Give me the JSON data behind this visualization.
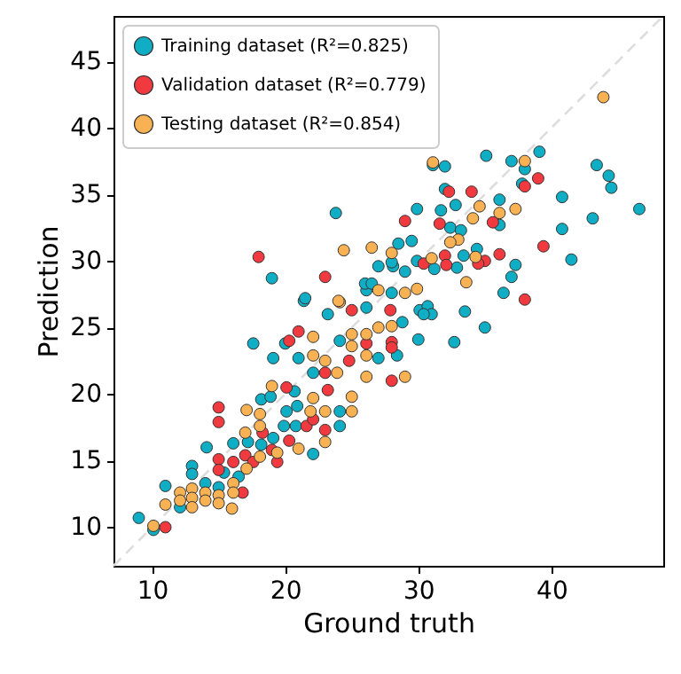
{
  "chart_data": {
    "type": "scatter",
    "xlabel": "Ground truth",
    "ylabel": "Prediction",
    "xlim": [
      7.1,
      48.4
    ],
    "ylim": [
      7.1,
      48.4
    ],
    "xticks": [
      10,
      20,
      30,
      40
    ],
    "yticks": [
      10,
      15,
      20,
      25,
      30,
      35,
      40,
      45
    ],
    "legend": "top left",
    "marker": "circle",
    "series": [
      {
        "type": "line",
        "color": "#dddddd",
        "line_style": "dashed",
        "marker": "none",
        "x": [
          7.1,
          48.4
        ],
        "values": [
          7.1,
          48.4
        ]
      },
      {
        "name": "Training dataset (R²=0.825)",
        "color": "#10aec4",
        "x": [
          9.0,
          10.1,
          11.0,
          12.1,
          13.0,
          13.0,
          14.1,
          14.0,
          15.0,
          15.4,
          16.1,
          16.5,
          17.2,
          18.2,
          18.2,
          18.9,
          19.1,
          19.9,
          20.1,
          20.8,
          22.1,
          24.1,
          20.9,
          20.7,
          24.1,
          17.6,
          19.1,
          20.0,
          21.4,
          21.0,
          22.1,
          23.2,
          24.1,
          26.1,
          27.0,
          26.1,
          23.8,
          19.0,
          21.5,
          26.0,
          27.0,
          26.5,
          28.1,
          28.5,
          28.0,
          28.0,
          29.0,
          29.9,
          29.5,
          29.9,
          31.7,
          32.0,
          32.8,
          32.4,
          33.2,
          31.2,
          32.9,
          33.4,
          34.4,
          36.1,
          36.1,
          37.3,
          37.0,
          36.4,
          35.1,
          37.0,
          39.1,
          37.8,
          38.0,
          43.4,
          44.3,
          44.5,
          46.6,
          43.1,
          40.8,
          40.8,
          41.5,
          31.1,
          32.0,
          33.5,
          30.1,
          30.7,
          31.0,
          30.4,
          35.0,
          32.7,
          30.0,
          28.8,
          28.4
        ],
        "values": [
          10.7,
          9.8,
          13.1,
          11.5,
          14.6,
          14.0,
          16.0,
          13.3,
          13.0,
          14.1,
          16.3,
          13.8,
          16.4,
          16.2,
          19.6,
          19.8,
          16.7,
          17.6,
          18.7,
          17.6,
          15.5,
          17.6,
          19.1,
          20.2,
          18.7,
          23.8,
          22.7,
          23.8,
          27.0,
          22.7,
          21.6,
          26.0,
          24.0,
          26.5,
          22.7,
          27.8,
          33.6,
          28.7,
          27.2,
          28.3,
          29.6,
          28.3,
          29.6,
          31.3,
          27.6,
          29.9,
          29.2,
          30.0,
          31.5,
          33.9,
          33.8,
          35.4,
          34.2,
          32.5,
          32.3,
          29.4,
          29.5,
          30.4,
          30.9,
          34.6,
          32.7,
          29.7,
          28.8,
          27.6,
          37.9,
          37.5,
          38.2,
          35.8,
          36.9,
          37.2,
          36.4,
          35.5,
          33.9,
          33.2,
          34.8,
          32.4,
          30.1,
          37.2,
          37.1,
          26.2,
          26.3,
          26.6,
          26.0,
          26.0,
          25.0,
          23.9,
          24.1,
          25.4,
          22.9
        ]
      },
      {
        "name": "Validation dataset (R²=0.779)",
        "color": "#f03a3f",
        "x": [
          11.0,
          15.0,
          15.0,
          15.0,
          15.0,
          16.8,
          16.1,
          17.0,
          17.6,
          18.3,
          19.4,
          19.0,
          20.3,
          20.1,
          21.6,
          22.1,
          23.0,
          23.2,
          20.3,
          21.0,
          23.0,
          25.0,
          24.8,
          26.1,
          18.0,
          23.0,
          27.9,
          28.0,
          28.0,
          28.0,
          38.0,
          32.0,
          32.1,
          30.4,
          36.1,
          35.0,
          34.5,
          39.4,
          35.6,
          34.0,
          32.3,
          29.0,
          31.6,
          38.0,
          39.0
        ],
        "values": [
          10.0,
          15.1,
          14.3,
          19.0,
          17.9,
          12.6,
          14.9,
          15.4,
          14.9,
          17.1,
          14.9,
          15.8,
          16.5,
          20.5,
          17.6,
          18.1,
          17.3,
          20.3,
          24.0,
          24.7,
          21.6,
          26.3,
          22.5,
          23.8,
          30.3,
          28.8,
          26.3,
          23.9,
          23.5,
          21.0,
          27.1,
          30.4,
          29.7,
          29.8,
          30.5,
          30.0,
          29.8,
          31.1,
          32.9,
          35.2,
          35.2,
          33.0,
          32.8,
          35.6,
          36.2
        ]
      },
      {
        "name": "Testing dataset (R²=0.854)",
        "color": "#f9b253",
        "x": [
          10.1,
          11.0,
          12.1,
          12.1,
          13.0,
          13.0,
          13.0,
          14.0,
          14.0,
          15.0,
          15.0,
          16.1,
          16.1,
          16.0,
          17.1,
          17.0,
          17.1,
          18.1,
          18.1,
          18.1,
          19.0,
          19.4,
          21.0,
          23.0,
          23.0,
          21.9,
          22.1,
          25.0,
          25.0,
          22.1,
          22.1,
          23.0,
          24.1,
          25.0,
          25.0,
          23.9,
          26.1,
          27.0,
          26.1,
          26.1,
          27.0,
          24.4,
          24.0,
          26.5,
          28.0,
          29.0,
          28.0,
          29.0,
          29.9,
          31.0,
          33.6,
          33.0,
          32.4,
          34.3,
          34.6,
          34.1,
          36.1,
          37.3,
          38.0,
          43.9,
          31.1
        ],
        "values": [
          10.1,
          11.7,
          12.6,
          12.0,
          12.9,
          12.2,
          11.5,
          12.6,
          12.0,
          12.4,
          11.8,
          13.3,
          12.6,
          11.4,
          14.4,
          17.1,
          18.8,
          15.3,
          18.5,
          17.6,
          20.6,
          15.6,
          15.9,
          16.4,
          18.7,
          18.7,
          19.7,
          19.8,
          18.7,
          24.3,
          22.9,
          22.5,
          26.9,
          24.5,
          23.6,
          21.6,
          24.5,
          25.0,
          22.9,
          21.3,
          27.8,
          30.8,
          27.0,
          31.0,
          25.1,
          21.3,
          30.6,
          27.6,
          27.9,
          30.2,
          28.4,
          31.6,
          31.4,
          30.3,
          34.1,
          33.2,
          33.6,
          33.9,
          37.5,
          42.3,
          37.4
        ]
      }
    ]
  }
}
